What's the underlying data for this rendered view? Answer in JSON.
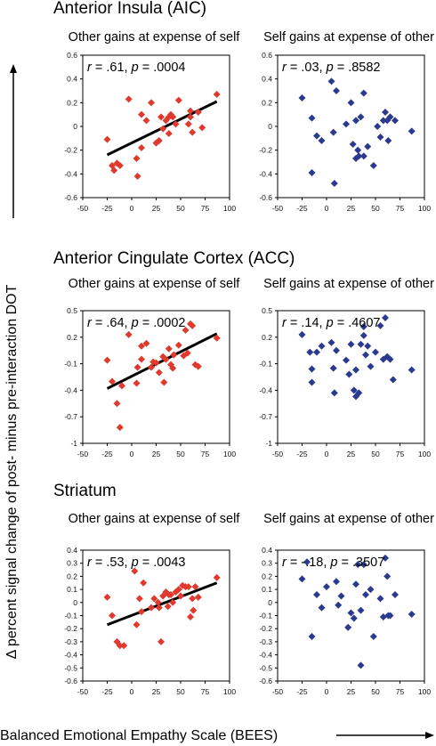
{
  "y_axis_label": "Δ percent signal change of post- minus pre-interaction DOT",
  "x_axis_label": "Balanced Emotional Empathy Scale (BEES)",
  "sections": [
    {
      "title": "Anterior Insula (AIC)",
      "left_title": "Other gains at expense of self",
      "right_title": "Self gains at expense of other"
    },
    {
      "title": "Anterior Cingulate Cortex (ACC)",
      "left_title": "Other gains at expense of self",
      "right_title": "Self gains at expense of other"
    },
    {
      "title": "Striatum",
      "left_title": "Other gains at expense of self",
      "right_title": "Self gains at expense of other"
    }
  ],
  "colors": {
    "other_gains": "#e03a2e",
    "self_gains": "#2b3a8f",
    "fit_line": "#000000"
  },
  "chart_data": [
    {
      "type": "scatter",
      "region": "Anterior Insula (AIC)",
      "condition": "Other gains at expense of self",
      "color": "#e03a2e",
      "r": ".61",
      "p": ".0004",
      "xlim": [
        -50,
        100
      ],
      "ylim": [
        -0.6,
        0.6
      ],
      "xticks": [
        "-50",
        "-25",
        "0",
        "25",
        "50",
        "75",
        "100"
      ],
      "yticks": [
        "0.6",
        "0.4",
        "0.2",
        "0",
        "-0.2",
        "-0.4",
        "-0.6"
      ],
      "fit": [
        [
          -25,
          -0.24
        ],
        [
          87,
          0.21
        ]
      ],
      "points": [
        [
          -25,
          -0.11
        ],
        [
          -20,
          -0.33
        ],
        [
          -18,
          -0.37
        ],
        [
          -15,
          -0.31
        ],
        [
          -12,
          -0.33
        ],
        [
          -3,
          0.23
        ],
        [
          5,
          -0.27
        ],
        [
          6,
          -0.42
        ],
        [
          10,
          -0.18
        ],
        [
          10,
          0.1
        ],
        [
          15,
          0.05
        ],
        [
          20,
          0.2
        ],
        [
          25,
          -0.14
        ],
        [
          28,
          -0.12
        ],
        [
          30,
          0.08
        ],
        [
          32,
          -0.02
        ],
        [
          35,
          0.05
        ],
        [
          38,
          -0.06
        ],
        [
          38,
          0.08
        ],
        [
          40,
          0.1
        ],
        [
          42,
          0.08
        ],
        [
          45,
          0.02
        ],
        [
          48,
          0.22
        ],
        [
          58,
          0.02
        ],
        [
          60,
          0.13
        ],
        [
          60,
          0.08
        ],
        [
          62,
          -0.05
        ],
        [
          68,
          0.12
        ],
        [
          72,
          -0.01
        ],
        [
          87,
          0.27
        ]
      ]
    },
    {
      "type": "scatter",
      "region": "Anterior Insula (AIC)",
      "condition": "Self gains at expense of other",
      "color": "#2b3a8f",
      "r": ".03",
      "p": ".8582",
      "xlim": [
        -50,
        100
      ],
      "ylim": [
        -0.6,
        0.6
      ],
      "xticks": [
        "-50",
        "-25",
        "0",
        "25",
        "50",
        "75",
        "100"
      ],
      "yticks": [
        "0.6",
        "0.4",
        "0.2",
        "0",
        "-0.2",
        "-0.4",
        "-0.6"
      ],
      "points": [
        [
          -25,
          0.24
        ],
        [
          -15,
          0.07
        ],
        [
          -15,
          -0.39
        ],
        [
          -10,
          -0.08
        ],
        [
          -5,
          -0.12
        ],
        [
          5,
          0.38
        ],
        [
          7,
          -0.05
        ],
        [
          8,
          -0.48
        ],
        [
          10,
          0.3
        ],
        [
          20,
          0.02
        ],
        [
          25,
          0.2
        ],
        [
          27,
          -0.15
        ],
        [
          30,
          0.05
        ],
        [
          30,
          -0.27
        ],
        [
          32,
          -0.2
        ],
        [
          33,
          -0.25
        ],
        [
          35,
          0.08
        ],
        [
          38,
          0.28
        ],
        [
          38,
          -0.25
        ],
        [
          42,
          -0.17
        ],
        [
          48,
          -0.33
        ],
        [
          52,
          0.0
        ],
        [
          55,
          -0.09
        ],
        [
          58,
          0.05
        ],
        [
          60,
          0.12
        ],
        [
          62,
          0.05
        ],
        [
          63,
          -0.12
        ],
        [
          65,
          0.08
        ],
        [
          70,
          0.05
        ],
        [
          87,
          -0.04
        ]
      ]
    },
    {
      "type": "scatter",
      "region": "Anterior Cingulate Cortex (ACC)",
      "condition": "Other gains at expense of self",
      "color": "#e03a2e",
      "r": ".64",
      "p": ".0002",
      "xlim": [
        -50,
        100
      ],
      "ylim": [
        -1,
        0.5
      ],
      "xticks": [
        "-50",
        "-25",
        "0",
        "25",
        "50",
        "75",
        "100"
      ],
      "yticks": [
        "0.5",
        "0.2",
        "-0.1",
        "-0.4",
        "-0.7",
        "-1"
      ],
      "fit": [
        [
          -25,
          -0.38
        ],
        [
          87,
          0.24
        ]
      ],
      "points": [
        [
          -25,
          -0.06
        ],
        [
          -20,
          -0.3
        ],
        [
          -15,
          -0.55
        ],
        [
          -12,
          -0.82
        ],
        [
          -10,
          -0.35
        ],
        [
          -3,
          0.23
        ],
        [
          5,
          -0.32
        ],
        [
          6,
          -0.14
        ],
        [
          10,
          -0.05
        ],
        [
          10,
          0.1
        ],
        [
          15,
          0.13
        ],
        [
          20,
          -0.14
        ],
        [
          22,
          -0.08
        ],
        [
          25,
          -0.09
        ],
        [
          28,
          -0.2
        ],
        [
          32,
          -0.02
        ],
        [
          33,
          -0.31
        ],
        [
          35,
          -0.05
        ],
        [
          38,
          0.07
        ],
        [
          40,
          -0.11
        ],
        [
          42,
          -0.15
        ],
        [
          43,
          0.0
        ],
        [
          48,
          0.11
        ],
        [
          53,
          -0.01
        ],
        [
          55,
          0.28
        ],
        [
          57,
          0.02
        ],
        [
          60,
          0.35
        ],
        [
          62,
          0.33
        ],
        [
          65,
          -0.11
        ],
        [
          68,
          -0.13
        ],
        [
          87,
          0.19
        ]
      ]
    },
    {
      "type": "scatter",
      "region": "Anterior Cingulate Cortex (ACC)",
      "condition": "Self gains at expense of other",
      "color": "#2b3a8f",
      "r": ".14",
      "p": ".4607",
      "xlim": [
        -50,
        100
      ],
      "ylim": [
        -1,
        0.5
      ],
      "xticks": [
        "-50",
        "-25",
        "0",
        "25",
        "50",
        "75",
        "100"
      ],
      "yticks": [
        "0.5",
        "0.2",
        "-0.1",
        "-0.4",
        "-0.7",
        "-1"
      ],
      "points": [
        [
          -25,
          0.23
        ],
        [
          -17,
          0.03
        ],
        [
          -15,
          -0.16
        ],
        [
          -15,
          -0.31
        ],
        [
          -10,
          0.03
        ],
        [
          -5,
          0.1
        ],
        [
          5,
          0.14
        ],
        [
          7,
          -0.15
        ],
        [
          8,
          -0.43
        ],
        [
          10,
          0.05
        ],
        [
          20,
          -0.06
        ],
        [
          23,
          -0.22
        ],
        [
          25,
          0.12
        ],
        [
          28,
          -0.4
        ],
        [
          30,
          -0.17
        ],
        [
          30,
          -0.47
        ],
        [
          33,
          -0.43
        ],
        [
          35,
          0.12
        ],
        [
          38,
          0.22
        ],
        [
          38,
          0.32
        ],
        [
          40,
          0.0
        ],
        [
          42,
          0.1
        ],
        [
          45,
          -0.13
        ],
        [
          50,
          0.03
        ],
        [
          55,
          0.33
        ],
        [
          58,
          -0.05
        ],
        [
          60,
          0.42
        ],
        [
          62,
          -0.02
        ],
        [
          65,
          -0.05
        ],
        [
          68,
          -0.28
        ],
        [
          87,
          -0.17
        ]
      ]
    },
    {
      "type": "scatter",
      "region": "Striatum",
      "condition": "Other gains at expense of self",
      "color": "#e03a2e",
      "r": ".53",
      "p": ".0043",
      "xlim": [
        -50,
        100
      ],
      "ylim": [
        -0.6,
        0.4
      ],
      "xticks": [
        "-50",
        "-25",
        "0",
        "25",
        "50",
        "75",
        "100"
      ],
      "yticks": [
        "0.4",
        "0.3",
        "0.2",
        "0.1",
        "0",
        "-0.1",
        "-0.2",
        "-0.3",
        "-0.4",
        "-0.5",
        "-0.6"
      ],
      "fit": [
        [
          -25,
          -0.17
        ],
        [
          87,
          0.15
        ]
      ],
      "points": [
        [
          -25,
          0.04
        ],
        [
          -20,
          -0.1
        ],
        [
          -15,
          -0.3
        ],
        [
          -12,
          -0.33
        ],
        [
          -8,
          -0.33
        ],
        [
          3,
          0.24
        ],
        [
          5,
          -0.17
        ],
        [
          8,
          0.03
        ],
        [
          10,
          -0.07
        ],
        [
          12,
          0.15
        ],
        [
          20,
          -0.04
        ],
        [
          23,
          0.03
        ],
        [
          27,
          0.0
        ],
        [
          28,
          -0.04
        ],
        [
          30,
          -0.3
        ],
        [
          32,
          0.05
        ],
        [
          35,
          0.08
        ],
        [
          37,
          -0.03
        ],
        [
          38,
          0.06
        ],
        [
          40,
          0.06
        ],
        [
          42,
          0.0
        ],
        [
          45,
          0.08
        ],
        [
          48,
          0.1
        ],
        [
          50,
          0.05
        ],
        [
          52,
          0.13
        ],
        [
          55,
          0.12
        ],
        [
          58,
          0.12
        ],
        [
          60,
          -0.11
        ],
        [
          62,
          0.03
        ],
        [
          63,
          -0.06
        ],
        [
          65,
          0.12
        ],
        [
          68,
          0.04
        ],
        [
          87,
          0.19
        ]
      ]
    },
    {
      "type": "scatter",
      "region": "Striatum",
      "condition": "Self gains at expense of other",
      "color": "#2b3a8f",
      "r": "-.18",
      "p": ".3507",
      "xlim": [
        -50,
        100
      ],
      "ylim": [
        -0.6,
        0.4
      ],
      "xticks": [
        "-50",
        "-25",
        "0",
        "25",
        "50",
        "75",
        "100"
      ],
      "yticks": [
        "0.4",
        "0.3",
        "0.2",
        "0.1",
        "0",
        "-0.1",
        "-0.2",
        "-0.3",
        "-0.4",
        "-0.5",
        "-0.6"
      ],
      "points": [
        [
          -25,
          0.18
        ],
        [
          -20,
          0.31
        ],
        [
          -15,
          -0.26
        ],
        [
          -10,
          0.06
        ],
        [
          -5,
          -0.04
        ],
        [
          0,
          0.12
        ],
        [
          10,
          0.16
        ],
        [
          12,
          -0.02
        ],
        [
          15,
          0.05
        ],
        [
          22,
          -0.19
        ],
        [
          25,
          -0.08
        ],
        [
          28,
          -0.12
        ],
        [
          30,
          0.14
        ],
        [
          32,
          0.29
        ],
        [
          35,
          -0.48
        ],
        [
          35,
          -0.06
        ],
        [
          38,
          0.29
        ],
        [
          40,
          0.06
        ],
        [
          45,
          0.1
        ],
        [
          48,
          -0.26
        ],
        [
          55,
          0.03
        ],
        [
          58,
          -0.11
        ],
        [
          60,
          0.34
        ],
        [
          62,
          0.2
        ],
        [
          63,
          -0.1
        ],
        [
          65,
          -0.1
        ],
        [
          70,
          0.06
        ],
        [
          87,
          -0.09
        ]
      ]
    }
  ]
}
